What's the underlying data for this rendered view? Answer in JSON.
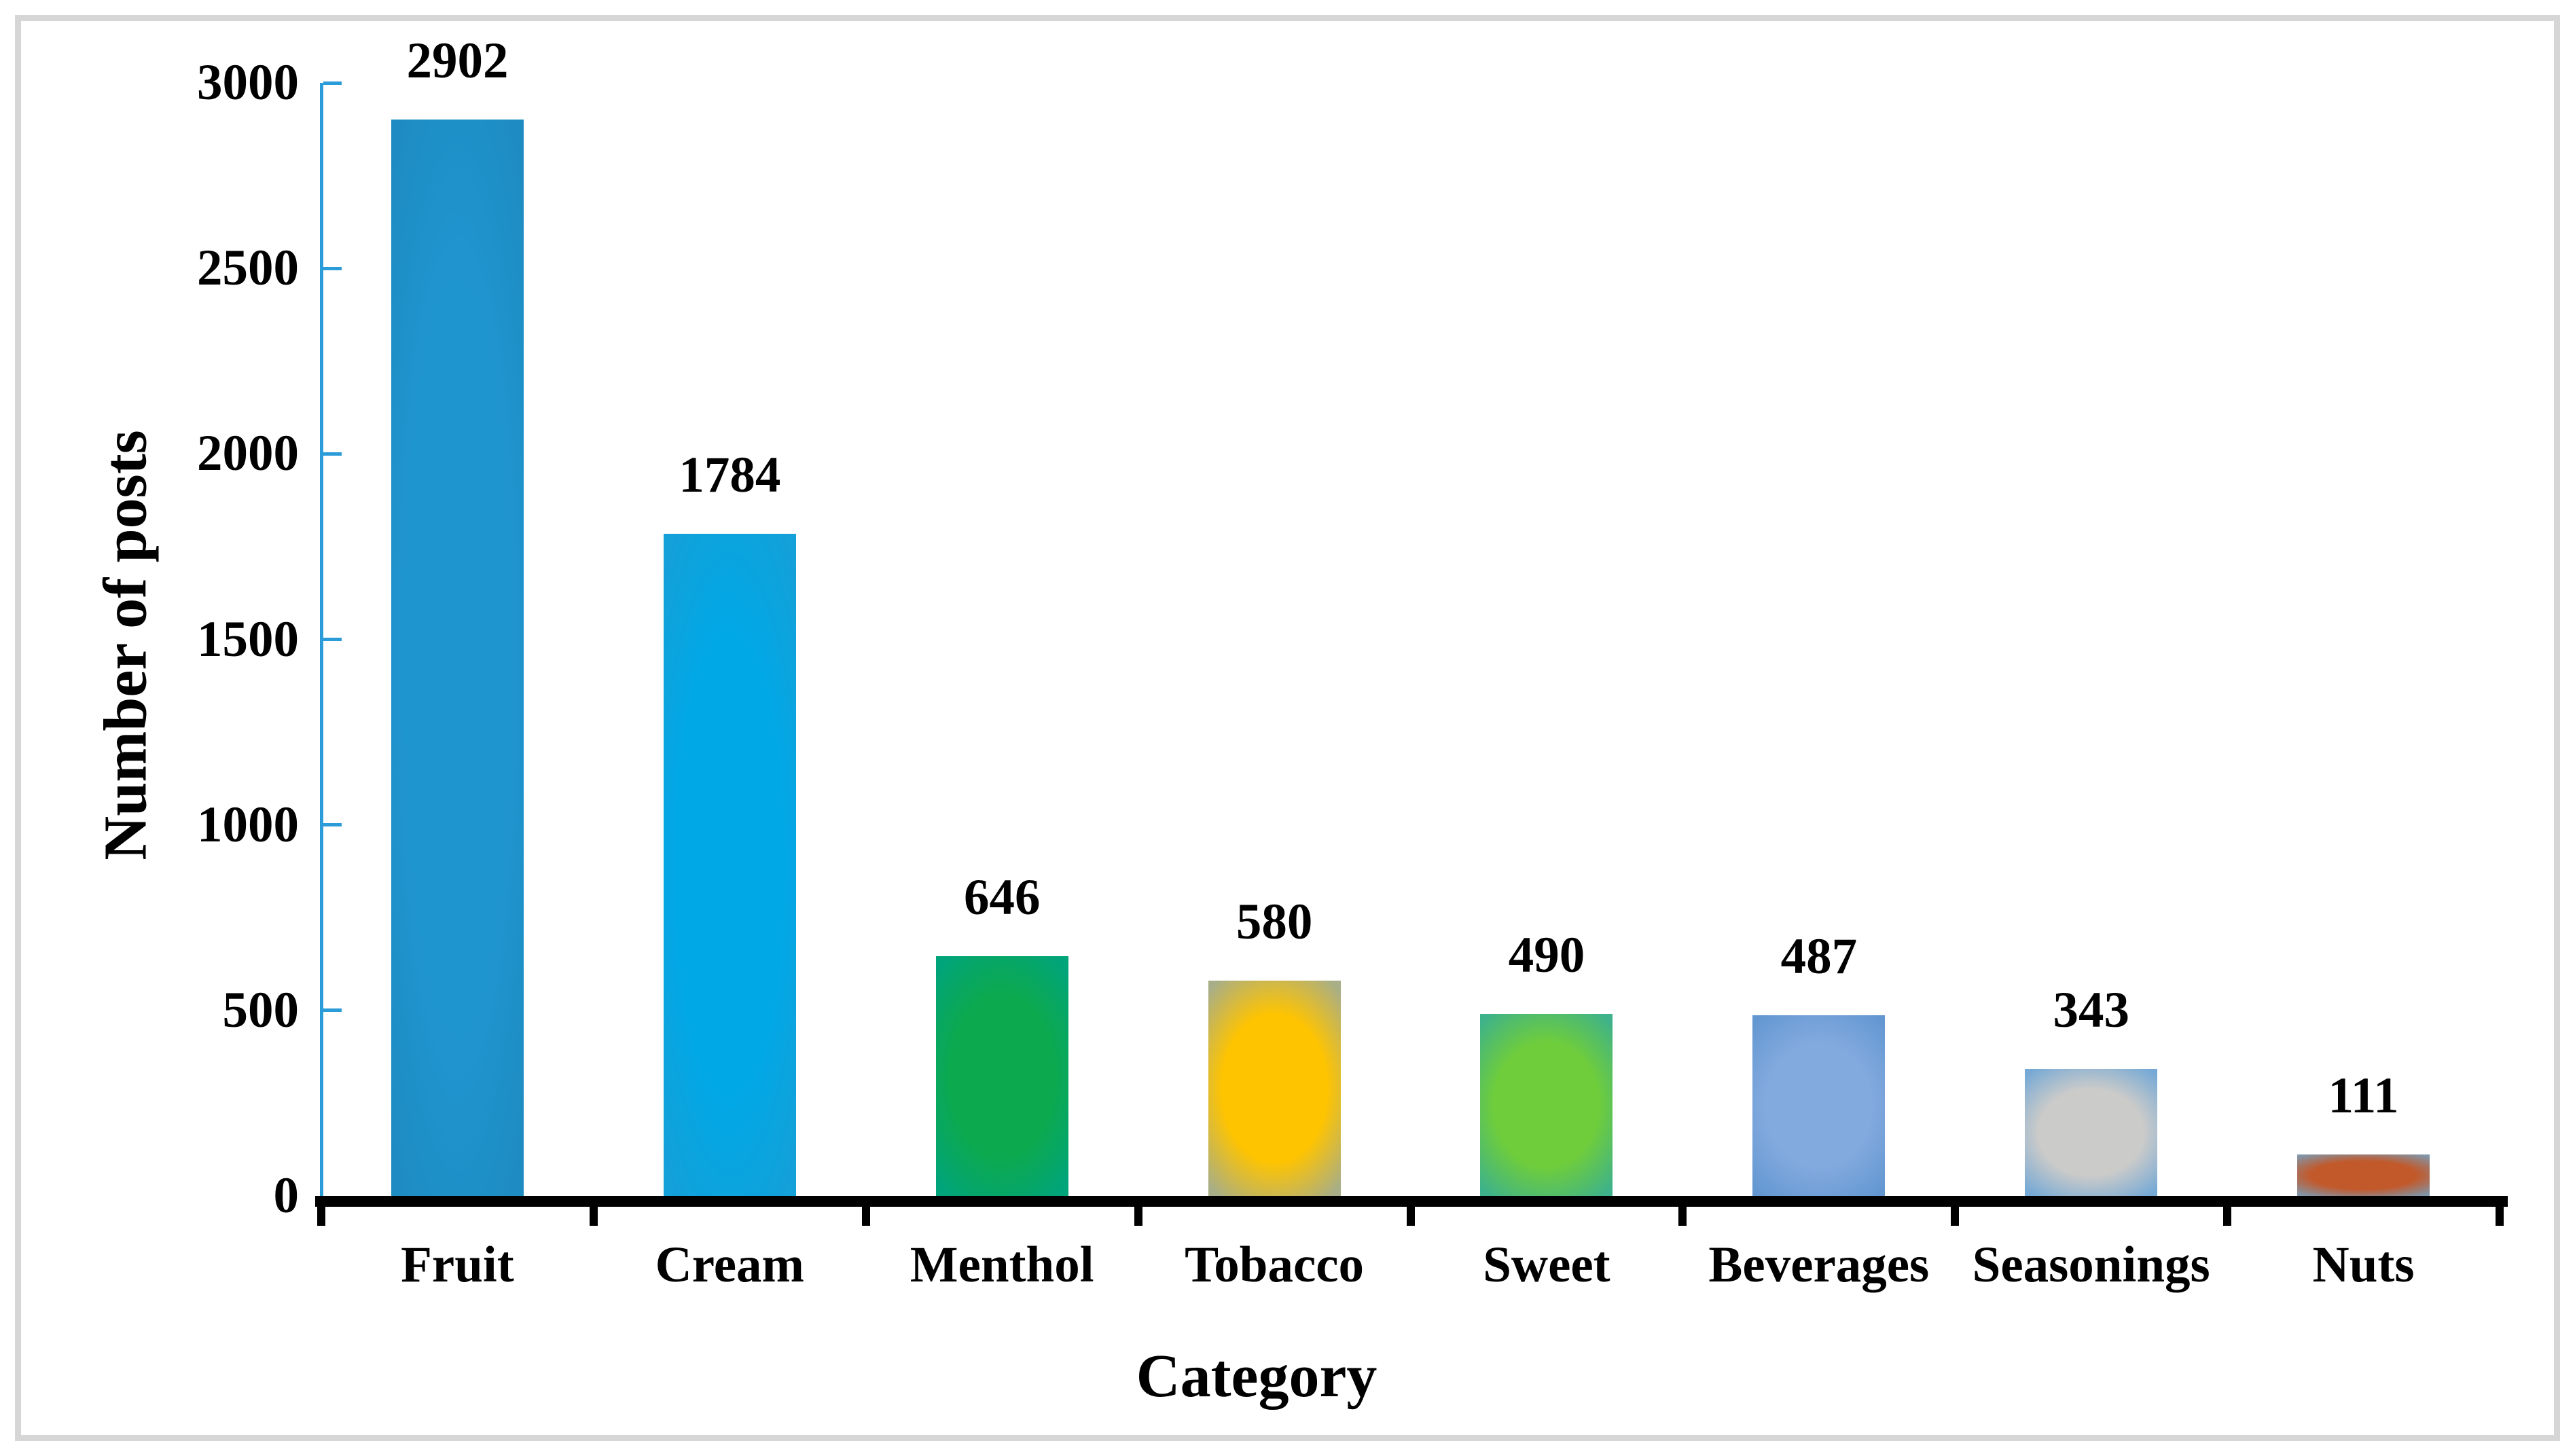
{
  "figure": {
    "background": "#FFFFFF",
    "frame_color": "#D6D6D6"
  },
  "chart_data": {
    "type": "bar",
    "title": "",
    "xlabel": "Category",
    "ylabel": "Number of posts",
    "categories": [
      "Fruit",
      "Cream",
      "Menthol",
      "Tobacco",
      "Sweet",
      "Beverages",
      "Seasonings",
      "Nuts"
    ],
    "values": [
      2902,
      1784,
      646,
      580,
      490,
      487,
      343,
      111
    ],
    "data_labels": [
      "2902",
      "1784",
      "646",
      "580",
      "490",
      "487",
      "343",
      "111"
    ],
    "ylim": [
      0,
      3000
    ],
    "yticks": [
      0,
      500,
      1000,
      1500,
      2000,
      2500,
      3000
    ],
    "grid": "off",
    "legend": "none",
    "axis_colors": {
      "y_axis": "#2B9CD8",
      "x_axis": "#000000",
      "text": "#000000"
    },
    "bar_colors": [
      {
        "core": "#1F95D0",
        "edge": "#1E8CC2"
      },
      {
        "core": "#00A8E6",
        "edge": "#14A0D8"
      },
      {
        "core": "#0CA94F",
        "edge": "#00A47B"
      },
      {
        "core": "#FFC400",
        "edge": "#A8AE87"
      },
      {
        "core": "#6FCD3B",
        "edge": "#3EB28A"
      },
      {
        "core": "#82AADF",
        "edge": "#6497D1"
      },
      {
        "core": "#CBCBC9",
        "edge": "#76A9D5"
      },
      {
        "core": "#C2592B",
        "edge": "#8096A9"
      }
    ]
  }
}
